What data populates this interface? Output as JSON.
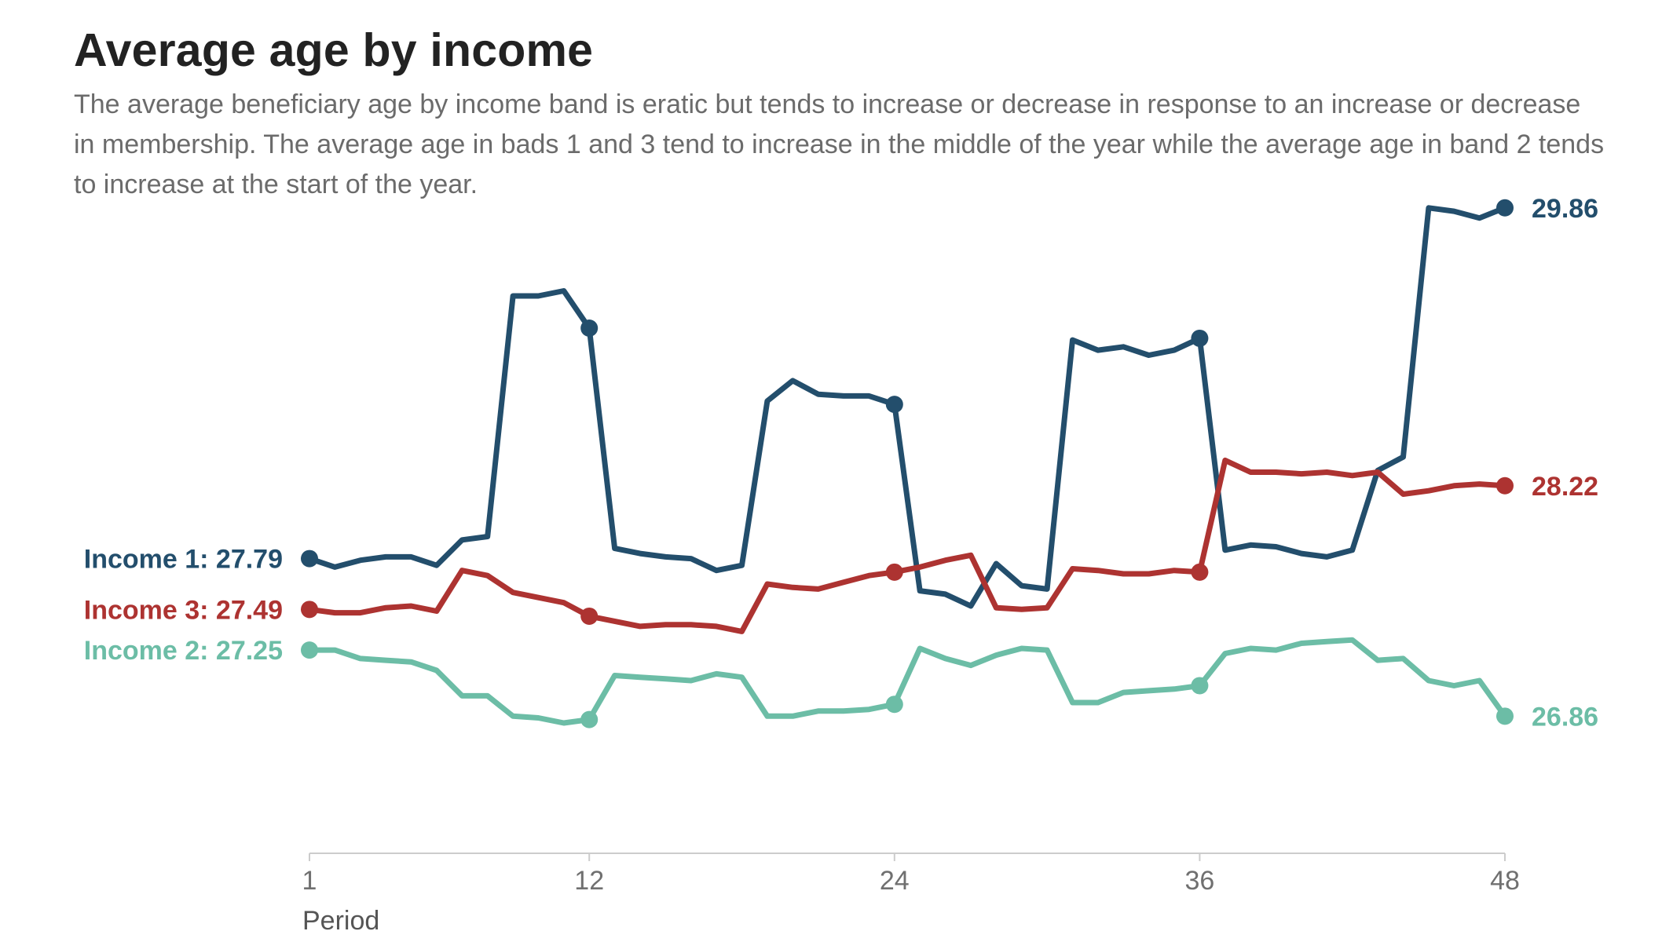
{
  "chart_data": {
    "type": "line",
    "title": "Average age by income",
    "subtitle": "The average beneficiary age by income band is eratic but tends to increase or decrease in response to an increase or decrease in membership. The average age in bads 1 and 3 tend to increase in the middle of the year while the average age in band 2 tends to increase at the start of the year.",
    "xlabel": "Period",
    "ylabel": "",
    "x": [
      1,
      2,
      3,
      4,
      5,
      6,
      7,
      8,
      9,
      10,
      11,
      12,
      13,
      14,
      15,
      16,
      17,
      18,
      19,
      20,
      21,
      22,
      23,
      24,
      25,
      26,
      27,
      28,
      29,
      30,
      31,
      32,
      33,
      34,
      35,
      36,
      37,
      38,
      39,
      40,
      41,
      42,
      43,
      44,
      45,
      46,
      47,
      48
    ],
    "x_ticks": [
      1,
      12,
      24,
      36,
      48
    ],
    "x_tick_labels": [
      "1",
      "12",
      "24",
      "36",
      "48"
    ],
    "xlim": [
      1,
      48
    ],
    "ylim": [
      26.06,
      30.16
    ],
    "grid": false,
    "legend": "direct labels at line ends",
    "series": [
      {
        "name": "Income 1",
        "color": "#234e6c",
        "start_label": "Income 1: 27.79",
        "end_label": "29.86",
        "marker_periods": [
          1,
          12,
          24,
          36,
          48
        ],
        "values": [
          27.79,
          27.74,
          27.78,
          27.8,
          27.8,
          27.75,
          27.9,
          27.92,
          29.34,
          29.34,
          29.37,
          29.15,
          27.85,
          27.82,
          27.8,
          27.79,
          27.72,
          27.75,
          28.72,
          28.84,
          28.76,
          28.75,
          28.75,
          28.7,
          27.6,
          27.58,
          27.51,
          27.76,
          27.63,
          27.61,
          29.08,
          29.02,
          29.04,
          28.99,
          29.02,
          29.09,
          27.84,
          27.87,
          27.86,
          27.82,
          27.8,
          27.84,
          28.31,
          28.39,
          29.86,
          29.84,
          29.8,
          29.86
        ]
      },
      {
        "name": "Income 2",
        "color": "#6cbda6",
        "start_label": "Income 2: 27.25",
        "end_label": "26.86",
        "marker_periods": [
          1,
          12,
          24,
          36,
          48
        ],
        "values": [
          27.25,
          27.25,
          27.2,
          27.19,
          27.18,
          27.13,
          26.98,
          26.98,
          26.86,
          26.85,
          26.82,
          26.84,
          27.1,
          27.09,
          27.08,
          27.07,
          27.11,
          27.09,
          26.86,
          26.86,
          26.89,
          26.89,
          26.9,
          26.93,
          27.26,
          27.2,
          27.16,
          27.22,
          27.26,
          27.25,
          26.94,
          26.94,
          27.0,
          27.01,
          27.02,
          27.04,
          27.23,
          27.26,
          27.25,
          27.29,
          27.3,
          27.31,
          27.19,
          27.2,
          27.07,
          27.04,
          27.07,
          26.86
        ]
      },
      {
        "name": "Income 3",
        "color": "#ad3331",
        "start_label": "Income 3: 27.49",
        "end_label": "28.22",
        "marker_periods": [
          1,
          12,
          24,
          36,
          48
        ],
        "values": [
          27.49,
          27.47,
          27.47,
          27.5,
          27.51,
          27.48,
          27.72,
          27.69,
          27.59,
          27.56,
          27.53,
          27.45,
          27.42,
          27.39,
          27.4,
          27.4,
          27.39,
          27.36,
          27.64,
          27.62,
          27.61,
          27.65,
          27.69,
          27.71,
          27.74,
          27.78,
          27.81,
          27.5,
          27.49,
          27.5,
          27.73,
          27.72,
          27.7,
          27.7,
          27.72,
          27.71,
          28.37,
          28.3,
          28.3,
          28.29,
          28.3,
          28.28,
          28.3,
          28.17,
          28.19,
          28.22,
          28.23,
          28.22
        ]
      }
    ]
  }
}
